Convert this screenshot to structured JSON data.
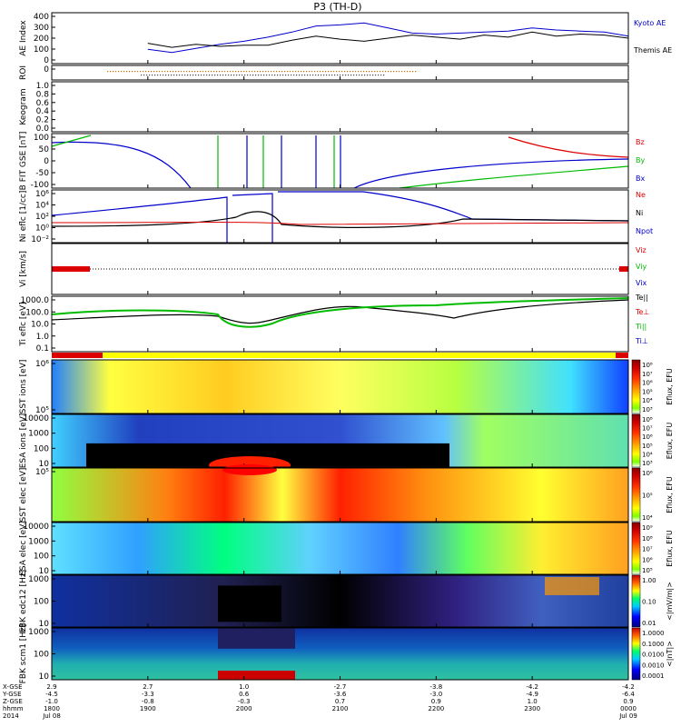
{
  "title": "P3 (TH-D)",
  "chart_data": [
    {
      "type": "line",
      "panel": "ae",
      "ylabel": "AE Index",
      "yticks": [
        "400",
        "300",
        "200",
        "100",
        "0"
      ],
      "ylim": [
        -50,
        450
      ],
      "legend": [
        "Kyoto AE",
        "Themis AE"
      ],
      "colors": [
        "#0000cc",
        "#000000"
      ],
      "series": [
        {
          "name": "Kyoto AE",
          "x": [
            1900,
            1915,
            1930,
            1945,
            2000,
            2015,
            2030,
            2045,
            2100,
            2115,
            2130,
            2145,
            2200,
            2215,
            2230,
            2245,
            2300,
            2315,
            2330,
            2345,
            2400
          ],
          "values": [
            90,
            60,
            100,
            140,
            170,
            210,
            260,
            320,
            330,
            350,
            300,
            250,
            240,
            250,
            260,
            270,
            300,
            280,
            270,
            260,
            220
          ]
        },
        {
          "name": "Themis AE",
          "x": [
            1900,
            1915,
            1930,
            1945,
            2000,
            2015,
            2030,
            2045,
            2100,
            2115,
            2130,
            2145,
            2200,
            2215,
            2230,
            2245,
            2300,
            2315,
            2330,
            2345,
            2400
          ],
          "values": [
            150,
            110,
            140,
            120,
            130,
            130,
            180,
            220,
            190,
            170,
            200,
            230,
            210,
            190,
            230,
            210,
            260,
            220,
            240,
            230,
            200
          ]
        }
      ]
    },
    {
      "type": "line",
      "panel": "roi",
      "ylabel": "ROI",
      "yticks": [
        "0"
      ]
    },
    {
      "type": "line",
      "panel": "keogram",
      "ylabel": "Keogram",
      "yticks": [
        "1.0",
        "0.8",
        "0.6",
        "0.4",
        "0.2",
        "0.0"
      ]
    },
    {
      "type": "line",
      "panel": "bfield",
      "ylabel": "B FIT GSE [nT]",
      "yticks": [
        "100",
        "50",
        "0",
        "-50",
        "-100"
      ],
      "ylim": [
        -100,
        100
      ],
      "legend": [
        "Bz",
        "By",
        "Bx"
      ],
      "colors": [
        "#dd0000",
        "#00bb00",
        "#0000cc"
      ]
    },
    {
      "type": "line",
      "panel": "density",
      "ylabel": "Ni eflc [1/cc]",
      "yticks": [
        "10⁶",
        "10⁴",
        "10²",
        "10⁰",
        "10⁻²"
      ],
      "legend": [
        "Ne",
        "Ni",
        "Npot"
      ],
      "colors": [
        "#dd0000",
        "#000000",
        "#0000cc"
      ]
    },
    {
      "type": "line",
      "panel": "velocity",
      "ylabel": "Vi [km/s]",
      "legend": [
        "Viz",
        "Viy",
        "Vix"
      ],
      "colors": [
        "#dd0000",
        "#00bb00",
        "#0000cc"
      ]
    },
    {
      "type": "line",
      "panel": "temperature",
      "ylabel": "Ti eflc [eV]",
      "yticks": [
        "1000.0",
        "100.0",
        "10.0",
        "1.0",
        "0.1"
      ],
      "legend": [
        "Te||",
        "Te⊥",
        "Ti||",
        "Ti⊥"
      ],
      "colors": [
        "#000000",
        "#dd0000",
        "#00bb00",
        "#0000cc"
      ]
    },
    {
      "type": "heatmap",
      "panel": "sst_i",
      "ylabel": "SST ions [eV]",
      "yticks": [
        "10⁶",
        "10⁵"
      ],
      "colorbar": {
        "label": "Eflux, EFU",
        "ticks": [
          "10⁸",
          "10⁷",
          "10⁶",
          "10⁵",
          "10⁴",
          "10³"
        ]
      }
    },
    {
      "type": "heatmap",
      "panel": "esa_i",
      "ylabel": "ESA ions [eV]",
      "yticks": [
        "10000",
        "1000",
        "100",
        "10"
      ],
      "colorbar": {
        "label": "Eflux, EFU",
        "ticks": [
          "10⁸",
          "10⁷",
          "10⁶",
          "10⁵",
          "10⁴",
          "10³"
        ]
      }
    },
    {
      "type": "heatmap",
      "panel": "sst_e",
      "ylabel": "SST elec [eV]",
      "yticks": [
        "10⁵"
      ],
      "colorbar": {
        "label": "Eflux, EFU",
        "ticks": [
          "10⁶",
          "10⁵",
          "10⁴"
        ]
      }
    },
    {
      "type": "heatmap",
      "panel": "esa_e",
      "ylabel": "ESA elec [eV]",
      "yticks": [
        "10000",
        "1000",
        "100",
        "10"
      ],
      "colorbar": {
        "label": "Eflux, EFU",
        "ticks": [
          "10⁹",
          "10⁸",
          "10⁷",
          "10⁶",
          "10⁵"
        ]
      }
    },
    {
      "type": "heatmap",
      "panel": "fbk_e",
      "ylabel": "FBK edc12 [Hz]",
      "yticks": [
        "1000",
        "100",
        "10"
      ],
      "colorbar": {
        "label": "<|mV/m|>",
        "ticks": [
          "1.00",
          "0.10",
          "0.01"
        ]
      }
    },
    {
      "type": "heatmap",
      "panel": "fbk_b",
      "ylabel": "FBK scm1 [Hz]",
      "yticks": [
        "1000",
        "100",
        "10"
      ],
      "colorbar": {
        "label": "<|nT|>",
        "ticks": [
          "1.0000",
          "0.1000",
          "0.0100",
          "0.0010",
          "0.0001"
        ]
      }
    }
  ],
  "xaxis": {
    "row_labels": [
      "X-GSE",
      "Y-GSE",
      "Z-GSE",
      "hhmm",
      "2014"
    ],
    "columns": [
      {
        "x": "2.9",
        "y": "-4.5",
        "z": "-1.0",
        "hhmm": "1800",
        "date": "Jul 08"
      },
      {
        "x": "2.7",
        "y": "-3.3",
        "z": "-0.8",
        "hhmm": "1900",
        "date": ""
      },
      {
        "x": "1.0",
        "y": "0.6",
        "z": "-0.3",
        "hhmm": "2000",
        "date": ""
      },
      {
        "x": "-2.7",
        "y": "-3.6",
        "z": "0.7",
        "hhmm": "2100",
        "date": ""
      },
      {
        "x": "-3.8",
        "y": "-3.0",
        "z": "0.9",
        "hhmm": "2200",
        "date": ""
      },
      {
        "x": "-4.2",
        "y": "-4.9",
        "z": "1.0",
        "hhmm": "2300",
        "date": ""
      },
      {
        "x": "-4.2",
        "y": "-6.4",
        "z": "0.9",
        "hhmm": "0000",
        "date": "Jul 09"
      }
    ]
  }
}
